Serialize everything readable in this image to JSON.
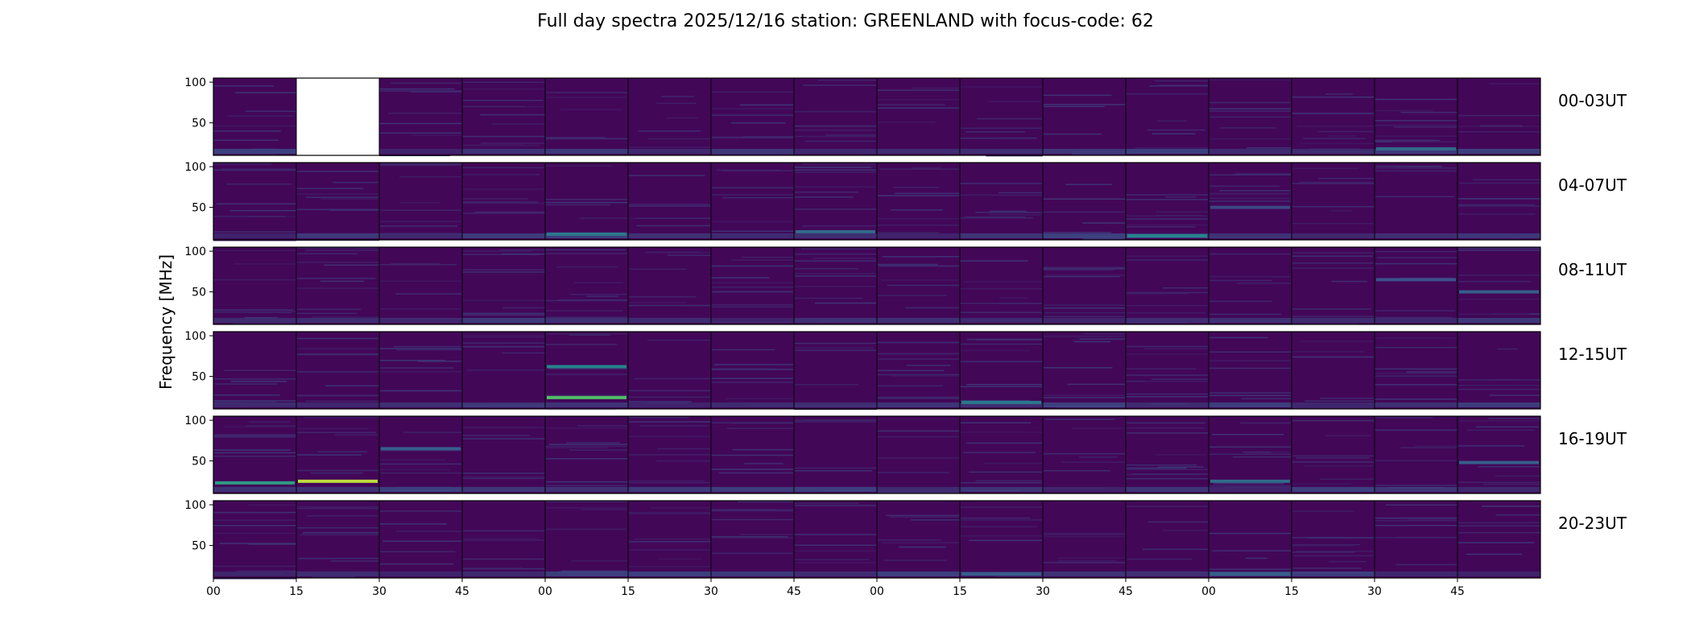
{
  "chart_data": {
    "type": "heatmap",
    "title": "Full day spectra 2025/12/16 station: GREENLAND with focus-code: 62",
    "ylabel": "Frequency [MHz]",
    "xlabel": "",
    "ylim": [
      10,
      105
    ],
    "yticks": [
      50,
      100
    ],
    "xtick_labels": [
      "00",
      "15",
      "30",
      "45",
      "00",
      "15",
      "30",
      "45",
      "00",
      "15",
      "30",
      "45",
      "00",
      "15",
      "30",
      "45"
    ],
    "row_labels": [
      "00-03UT",
      "04-07UT",
      "08-11UT",
      "12-15UT",
      "16-19UT",
      "20-23UT"
    ],
    "panels_per_row": 16,
    "colormap": [
      "#440154",
      "#3b528b",
      "#21918c",
      "#5ec962",
      "#fde725"
    ],
    "missing_panels": [
      [
        0,
        1
      ]
    ],
    "bright_bands": [
      {
        "row": 0,
        "panel": 14,
        "freq": 18,
        "level": 0.35
      },
      {
        "row": 1,
        "panel": 4,
        "freq": 17,
        "level": 0.4
      },
      {
        "row": 1,
        "panel": 7,
        "freq": 20,
        "level": 0.35
      },
      {
        "row": 1,
        "panel": 11,
        "freq": 15,
        "level": 0.45
      },
      {
        "row": 1,
        "panel": 12,
        "freq": 50,
        "level": 0.22
      },
      {
        "row": 2,
        "panel": 15,
        "freq": 50,
        "level": 0.3
      },
      {
        "row": 2,
        "panel": 14,
        "freq": 65,
        "level": 0.25
      },
      {
        "row": 3,
        "panel": 4,
        "freq": 62,
        "level": 0.45
      },
      {
        "row": 3,
        "panel": 4,
        "freq": 24,
        "level": 0.7
      },
      {
        "row": 3,
        "panel": 9,
        "freq": 18,
        "level": 0.4
      },
      {
        "row": 4,
        "panel": 0,
        "freq": 23,
        "level": 0.55
      },
      {
        "row": 4,
        "panel": 1,
        "freq": 25,
        "level": 0.9
      },
      {
        "row": 4,
        "panel": 2,
        "freq": 65,
        "level": 0.3
      },
      {
        "row": 4,
        "panel": 15,
        "freq": 48,
        "level": 0.3
      },
      {
        "row": 4,
        "panel": 12,
        "freq": 25,
        "level": 0.35
      },
      {
        "row": 5,
        "panel": 9,
        "freq": 15,
        "level": 0.3
      },
      {
        "row": 5,
        "panel": 12,
        "freq": 15,
        "level": 0.3
      }
    ]
  }
}
